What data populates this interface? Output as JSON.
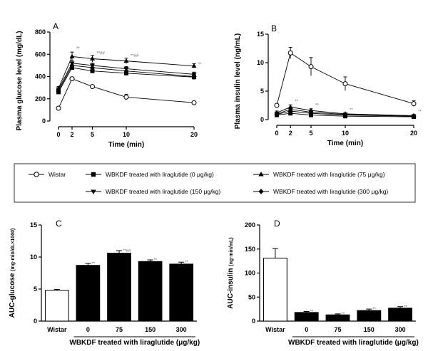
{
  "chart_data": [
    {
      "id": "A",
      "type": "line",
      "panel_label": "A",
      "xlabel": "Time (min)",
      "ylabel": "Plasma glucose level (mg/dL)",
      "x": [
        0,
        2,
        5,
        10,
        20
      ],
      "x_ticks": [
        "0",
        "2",
        "5",
        "10",
        "20"
      ],
      "ylim": [
        0,
        800
      ],
      "y_ticks": [
        "0",
        "200",
        "400",
        "600",
        "800"
      ],
      "series": [
        {
          "key": "wistar",
          "values": [
            115,
            380,
            310,
            215,
            165
          ],
          "errors": [
            0,
            15,
            10,
            25,
            10
          ],
          "marker": "circle-open"
        },
        {
          "key": "lira0",
          "values": [
            260,
            480,
            450,
            430,
            395
          ],
          "errors": [
            15,
            20,
            18,
            20,
            22
          ],
          "marker": "square"
        },
        {
          "key": "lira75",
          "values": [
            295,
            580,
            560,
            540,
            495
          ],
          "errors": [
            15,
            40,
            30,
            25,
            20
          ],
          "marker": "triangle-up"
        },
        {
          "key": "lira150",
          "values": [
            285,
            520,
            500,
            470,
            420
          ],
          "errors": [
            15,
            25,
            20,
            20,
            20
          ],
          "marker": "triangle-down"
        },
        {
          "key": "lira300",
          "values": [
            270,
            500,
            480,
            450,
            400
          ],
          "errors": [
            15,
            25,
            20,
            20,
            20
          ],
          "marker": "diamond"
        }
      ],
      "annotations": [
        {
          "x": 2,
          "y": 640,
          "text": "**"
        },
        {
          "x": 5,
          "y": 600,
          "text": "**##"
        },
        {
          "x": 10,
          "y": 575,
          "text": "**##"
        },
        {
          "x": 20,
          "y": 500,
          "text": "**"
        }
      ]
    },
    {
      "id": "B",
      "type": "line",
      "panel_label": "B",
      "xlabel": "Time (min)",
      "ylabel": "Plasma insulin level (ng/mL)",
      "x": [
        0,
        2,
        5,
        10,
        20
      ],
      "x_ticks": [
        "0",
        "2",
        "5",
        "10",
        "20"
      ],
      "ylim": [
        0,
        15
      ],
      "y_ticks": [
        "0",
        "5",
        "10",
        "15"
      ],
      "series": [
        {
          "key": "wistar",
          "values": [
            2.5,
            11.7,
            9.3,
            6.3,
            2.8
          ],
          "errors": [
            0.3,
            1.0,
            1.6,
            1.2,
            0.5
          ],
          "marker": "circle-open"
        },
        {
          "key": "lira0",
          "values": [
            0.8,
            1.1,
            0.8,
            0.6,
            0.5
          ],
          "errors": [
            0.2,
            0.3,
            0.2,
            0.2,
            0.1
          ],
          "marker": "square"
        },
        {
          "key": "lira75",
          "values": [
            1.2,
            2.2,
            1.6,
            1.0,
            0.7
          ],
          "errors": [
            0.3,
            0.4,
            0.3,
            0.2,
            0.2
          ],
          "marker": "triangle-up"
        },
        {
          "key": "lira150",
          "values": [
            1.0,
            1.8,
            1.3,
            0.9,
            0.6
          ],
          "errors": [
            0.3,
            0.3,
            0.3,
            0.2,
            0.2
          ],
          "marker": "triangle-down"
        },
        {
          "key": "lira300",
          "values": [
            0.9,
            1.5,
            1.1,
            0.8,
            0.6
          ],
          "errors": [
            0.2,
            0.3,
            0.2,
            0.2,
            0.1
          ],
          "marker": "diamond"
        }
      ],
      "annotations": [
        {
          "x": 2,
          "y": 3.0,
          "text": "**"
        },
        {
          "x": 5,
          "y": 2.3,
          "text": "**"
        },
        {
          "x": 10,
          "y": 1.5,
          "text": "**"
        },
        {
          "x": 20,
          "y": 1.2,
          "text": "**"
        }
      ]
    },
    {
      "id": "C",
      "type": "bar",
      "panel_label": "C",
      "ylabel": "AUC-glucose",
      "ylabel_unit": "(mg·min/dL×1000)",
      "categories": [
        "Wistar",
        "0",
        "75",
        "150",
        "300"
      ],
      "values": [
        4.8,
        8.7,
        10.6,
        9.3,
        8.9
      ],
      "errors": [
        0.15,
        0.3,
        0.4,
        0.25,
        0.3
      ],
      "ylim": [
        0,
        15
      ],
      "y_ticks": [
        "0",
        "5",
        "10",
        "15"
      ],
      "sig": [
        "",
        "**",
        "**##",
        "**",
        "**"
      ],
      "group_label": "WBKDF treated with liraglutide (μg/kg)"
    },
    {
      "id": "D",
      "type": "bar",
      "panel_label": "D",
      "ylabel": "AUC-insulin",
      "ylabel_unit": "(ng·min/mL)",
      "categories": [
        "Wistar",
        "0",
        "75",
        "150",
        "300"
      ],
      "values": [
        131,
        18,
        13,
        22,
        27
      ],
      "errors": [
        20,
        2,
        2,
        3,
        3
      ],
      "ylim": [
        0,
        200
      ],
      "y_ticks": [
        "0",
        "50",
        "100",
        "150",
        "200"
      ],
      "sig": [
        "",
        "**",
        "**",
        "**",
        "**"
      ],
      "group_label": "WBKDF treated with liraglutide (μg/kg)"
    }
  ],
  "legend": {
    "placement": "middle",
    "entries": [
      {
        "key": "wistar",
        "label": "Wistar",
        "marker": "circle-open"
      },
      {
        "key": "lira0",
        "label": "WBKDF treated with liraglutide (0 μg/kg)",
        "marker": "square"
      },
      {
        "key": "lira75",
        "label": "WBKDF treated with liraglutide (75 μg/kg)",
        "marker": "triangle-up"
      },
      {
        "key": "lira150",
        "label": "WBKDF treated with liraglutide (150 μg/kg)",
        "marker": "triangle-down"
      },
      {
        "key": "lira300",
        "label": "WBKDF treated with liraglutide (300 μg/kg)",
        "marker": "diamond"
      }
    ]
  },
  "colors": {
    "ink": "#000000",
    "bar_fill": "#000000",
    "bar_open": "#ffffff",
    "sig": "#666666"
  }
}
